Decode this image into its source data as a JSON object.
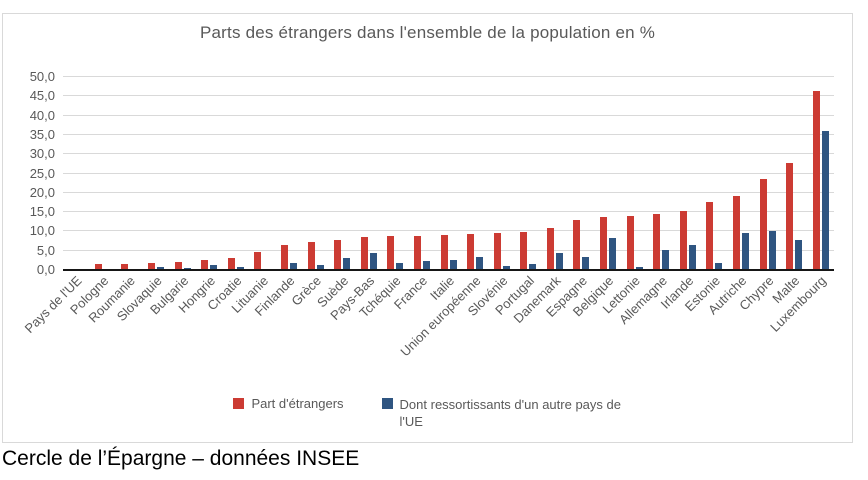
{
  "page": {
    "footer": "Cercle de l’Épargne – données INSEE"
  },
  "chart_data": {
    "type": "bar",
    "title": "Parts des étrangers dans l'ensemble de la population en %",
    "xlabel": "",
    "ylabel": "",
    "ylim": [
      0,
      50
    ],
    "ytick_step": 5,
    "ytick_labels": [
      "0,0",
      "5,0",
      "10,0",
      "15,0",
      "20,0",
      "25,0",
      "30,0",
      "35,0",
      "40,0",
      "45,0",
      "50,0"
    ],
    "grid": true,
    "legend_position": "bottom",
    "categories": [
      "Pays de l'UE",
      "Pologne",
      "Roumanie",
      "Slovaquie",
      "Bulgarie",
      "Hongrie",
      "Croatie",
      "Lituanie",
      "Finlande",
      "Grèce",
      "Suède",
      "Pays-Bas",
      "Tchéquie",
      "France",
      "Italie",
      "Union européenne",
      "Slovénie",
      "Portugal",
      "Danemark",
      "Espagne",
      "Belgique",
      "Lettonie",
      "Allemagne",
      "Irlande",
      "Estonie",
      "Autriche",
      "Chypre",
      "Malte",
      "Luxembourg"
    ],
    "series": [
      {
        "name": "Part d'étrangers",
        "color": "#cc3b33",
        "values": [
          0,
          1.5,
          1.6,
          1.8,
          2.2,
          2.7,
          3.2,
          4.8,
          6.5,
          7.2,
          7.9,
          8.5,
          8.7,
          8.8,
          9.0,
          9.3,
          9.5,
          9.8,
          10.8,
          13.0,
          13.8,
          14.0,
          14.5,
          15.2,
          17.6,
          19.3,
          23.6,
          27.7,
          46.5
        ]
      },
      {
        "name": "Dont ressortissants d'un autre pays de l'UE",
        "color": "#2f5581",
        "values": [
          0,
          0.2,
          0.4,
          0.8,
          0.5,
          1.2,
          0.8,
          0.3,
          1.9,
          1.2,
          3.1,
          4.3,
          1.7,
          2.3,
          2.5,
          3.3,
          1.0,
          1.6,
          4.4,
          3.5,
          8.4,
          0.8,
          5.3,
          6.6,
          1.7,
          9.7,
          10.1,
          7.8,
          36.1
        ]
      }
    ]
  }
}
